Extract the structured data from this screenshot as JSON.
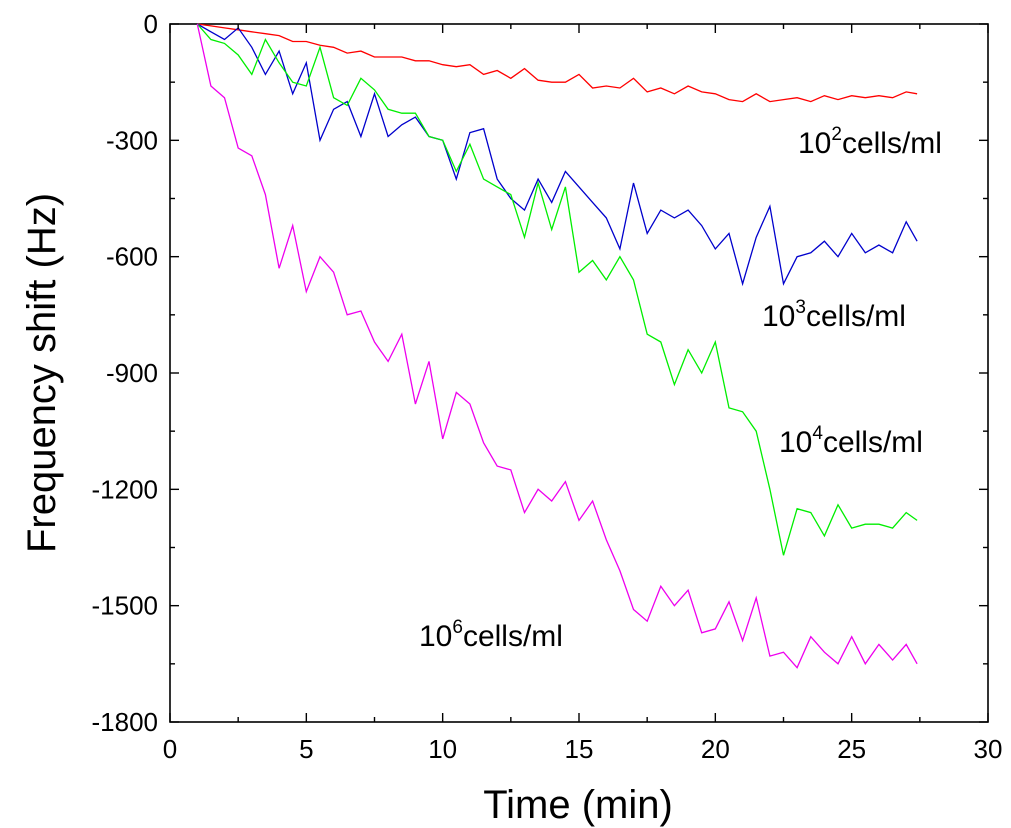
{
  "chart_data": {
    "type": "line",
    "title": "",
    "xlabel": "Time (min)",
    "ylabel": "Frequency shift (Hz)",
    "xlim": [
      0,
      30
    ],
    "ylim": [
      -1800,
      0
    ],
    "xticks": [
      0,
      5,
      10,
      15,
      20,
      25,
      30
    ],
    "yticks": [
      0,
      -300,
      -600,
      -900,
      -1200,
      -1500,
      -1800
    ],
    "x_tick_labels": [
      "0",
      "5",
      "10",
      "15",
      "20",
      "25",
      "30"
    ],
    "y_tick_labels": [
      "0",
      "-300",
      "-600",
      "-900",
      "-1200",
      "-1500",
      "-1800"
    ],
    "grid": false,
    "legend": "none (inline labels)",
    "series": [
      {
        "name": "10^2cells/ml",
        "label_base": "10",
        "label_exp": "2",
        "label_rest": "cells/ml",
        "color": "#ff0000",
        "points": [
          [
            1.0,
            0
          ],
          [
            1.5,
            -5
          ],
          [
            2.0,
            -10
          ],
          [
            2.5,
            -15
          ],
          [
            3.0,
            -20
          ],
          [
            3.5,
            -25
          ],
          [
            4.0,
            -30
          ],
          [
            4.5,
            -45
          ],
          [
            5.0,
            -45
          ],
          [
            5.5,
            -55
          ],
          [
            6.0,
            -60
          ],
          [
            6.5,
            -75
          ],
          [
            7.0,
            -70
          ],
          [
            7.5,
            -85
          ],
          [
            8.0,
            -85
          ],
          [
            8.5,
            -85
          ],
          [
            9.0,
            -95
          ],
          [
            9.5,
            -95
          ],
          [
            10.0,
            -105
          ],
          [
            10.5,
            -110
          ],
          [
            11.0,
            -105
          ],
          [
            11.5,
            -130
          ],
          [
            12.0,
            -120
          ],
          [
            12.5,
            -140
          ],
          [
            13.0,
            -115
          ],
          [
            13.5,
            -145
          ],
          [
            14.0,
            -150
          ],
          [
            14.5,
            -150
          ],
          [
            15.0,
            -130
          ],
          [
            15.5,
            -165
          ],
          [
            16.0,
            -160
          ],
          [
            16.5,
            -165
          ],
          [
            17.0,
            -140
          ],
          [
            17.5,
            -175
          ],
          [
            18.0,
            -165
          ],
          [
            18.5,
            -180
          ],
          [
            19.0,
            -160
          ],
          [
            19.5,
            -175
          ],
          [
            20.0,
            -180
          ],
          [
            20.5,
            -195
          ],
          [
            21.0,
            -200
          ],
          [
            21.5,
            -180
          ],
          [
            22.0,
            -200
          ],
          [
            22.5,
            -195
          ],
          [
            23.0,
            -190
          ],
          [
            23.5,
            -200
          ],
          [
            24.0,
            -185
          ],
          [
            24.5,
            -195
          ],
          [
            25.0,
            -185
          ],
          [
            25.5,
            -190
          ],
          [
            26.0,
            -185
          ],
          [
            26.5,
            -190
          ],
          [
            27.0,
            -175
          ],
          [
            27.4,
            -180
          ]
        ]
      },
      {
        "name": "10^3cells/ml",
        "label_base": "10",
        "label_exp": "3",
        "label_rest": "cells/ml",
        "color": "#0000cc",
        "points": [
          [
            1.0,
            0
          ],
          [
            1.5,
            -20
          ],
          [
            2.0,
            -40
          ],
          [
            2.5,
            -10
          ],
          [
            3.0,
            -60
          ],
          [
            3.5,
            -130
          ],
          [
            4.0,
            -70
          ],
          [
            4.5,
            -180
          ],
          [
            5.0,
            -100
          ],
          [
            5.5,
            -300
          ],
          [
            6.0,
            -220
          ],
          [
            6.5,
            -200
          ],
          [
            7.0,
            -290
          ],
          [
            7.5,
            -180
          ],
          [
            8.0,
            -290
          ],
          [
            8.5,
            -260
          ],
          [
            9.0,
            -240
          ],
          [
            9.5,
            -290
          ],
          [
            10.0,
            -300
          ],
          [
            10.5,
            -400
          ],
          [
            11.0,
            -280
          ],
          [
            11.5,
            -270
          ],
          [
            12.0,
            -400
          ],
          [
            12.5,
            -450
          ],
          [
            13.0,
            -480
          ],
          [
            13.5,
            -400
          ],
          [
            14.0,
            -460
          ],
          [
            14.5,
            -380
          ],
          [
            15.0,
            -420
          ],
          [
            15.5,
            -460
          ],
          [
            16.0,
            -500
          ],
          [
            16.5,
            -580
          ],
          [
            17.0,
            -410
          ],
          [
            17.5,
            -540
          ],
          [
            18.0,
            -480
          ],
          [
            18.5,
            -500
          ],
          [
            19.0,
            -480
          ],
          [
            19.5,
            -520
          ],
          [
            20.0,
            -580
          ],
          [
            20.5,
            -540
          ],
          [
            21.0,
            -670
          ],
          [
            21.5,
            -550
          ],
          [
            22.0,
            -470
          ],
          [
            22.5,
            -670
          ],
          [
            23.0,
            -600
          ],
          [
            23.5,
            -590
          ],
          [
            24.0,
            -560
          ],
          [
            24.5,
            -600
          ],
          [
            25.0,
            -540
          ],
          [
            25.5,
            -590
          ],
          [
            26.0,
            -570
          ],
          [
            26.5,
            -590
          ],
          [
            27.0,
            -510
          ],
          [
            27.4,
            -560
          ]
        ]
      },
      {
        "name": "10^4cells/ml",
        "label_base": "10",
        "label_exp": "4",
        "label_rest": "cells/ml",
        "color": "#00ee00",
        "points": [
          [
            1.0,
            0
          ],
          [
            1.5,
            -40
          ],
          [
            2.0,
            -50
          ],
          [
            2.5,
            -80
          ],
          [
            3.0,
            -130
          ],
          [
            3.5,
            -40
          ],
          [
            4.0,
            -100
          ],
          [
            4.5,
            -150
          ],
          [
            5.0,
            -160
          ],
          [
            5.5,
            -60
          ],
          [
            6.0,
            -190
          ],
          [
            6.5,
            -210
          ],
          [
            7.0,
            -140
          ],
          [
            7.5,
            -170
          ],
          [
            8.0,
            -220
          ],
          [
            8.5,
            -230
          ],
          [
            9.0,
            -230
          ],
          [
            9.5,
            -290
          ],
          [
            10.0,
            -300
          ],
          [
            10.5,
            -380
          ],
          [
            11.0,
            -310
          ],
          [
            11.5,
            -400
          ],
          [
            12.0,
            -420
          ],
          [
            12.5,
            -440
          ],
          [
            13.0,
            -550
          ],
          [
            13.5,
            -410
          ],
          [
            14.0,
            -530
          ],
          [
            14.5,
            -420
          ],
          [
            15.0,
            -640
          ],
          [
            15.5,
            -610
          ],
          [
            16.0,
            -660
          ],
          [
            16.5,
            -600
          ],
          [
            17.0,
            -660
          ],
          [
            17.5,
            -800
          ],
          [
            18.0,
            -820
          ],
          [
            18.5,
            -930
          ],
          [
            19.0,
            -840
          ],
          [
            19.5,
            -900
          ],
          [
            20.0,
            -820
          ],
          [
            20.5,
            -990
          ],
          [
            21.0,
            -1000
          ],
          [
            21.5,
            -1050
          ],
          [
            22.0,
            -1200
          ],
          [
            22.5,
            -1370
          ],
          [
            23.0,
            -1250
          ],
          [
            23.5,
            -1260
          ],
          [
            24.0,
            -1320
          ],
          [
            24.5,
            -1240
          ],
          [
            25.0,
            -1300
          ],
          [
            25.5,
            -1290
          ],
          [
            26.0,
            -1290
          ],
          [
            26.5,
            -1300
          ],
          [
            27.0,
            -1260
          ],
          [
            27.4,
            -1280
          ]
        ]
      },
      {
        "name": "10^6cells/ml",
        "label_base": "10",
        "label_exp": "6",
        "label_rest": "cells/ml",
        "color": "#ee00ee",
        "points": [
          [
            1.0,
            0
          ],
          [
            1.5,
            -160
          ],
          [
            2.0,
            -190
          ],
          [
            2.5,
            -320
          ],
          [
            3.0,
            -340
          ],
          [
            3.5,
            -440
          ],
          [
            4.0,
            -630
          ],
          [
            4.5,
            -520
          ],
          [
            5.0,
            -690
          ],
          [
            5.5,
            -600
          ],
          [
            6.0,
            -640
          ],
          [
            6.5,
            -750
          ],
          [
            7.0,
            -740
          ],
          [
            7.5,
            -820
          ],
          [
            8.0,
            -870
          ],
          [
            8.5,
            -800
          ],
          [
            9.0,
            -980
          ],
          [
            9.5,
            -870
          ],
          [
            10.0,
            -1070
          ],
          [
            10.5,
            -950
          ],
          [
            11.0,
            -980
          ],
          [
            11.5,
            -1080
          ],
          [
            12.0,
            -1140
          ],
          [
            12.5,
            -1150
          ],
          [
            13.0,
            -1260
          ],
          [
            13.5,
            -1200
          ],
          [
            14.0,
            -1230
          ],
          [
            14.5,
            -1180
          ],
          [
            15.0,
            -1280
          ],
          [
            15.5,
            -1230
          ],
          [
            16.0,
            -1330
          ],
          [
            16.5,
            -1410
          ],
          [
            17.0,
            -1510
          ],
          [
            17.5,
            -1540
          ],
          [
            18.0,
            -1450
          ],
          [
            18.5,
            -1500
          ],
          [
            19.0,
            -1460
          ],
          [
            19.5,
            -1570
          ],
          [
            20.0,
            -1560
          ],
          [
            20.5,
            -1490
          ],
          [
            21.0,
            -1590
          ],
          [
            21.5,
            -1480
          ],
          [
            22.0,
            -1630
          ],
          [
            22.5,
            -1620
          ],
          [
            23.0,
            -1660
          ],
          [
            23.5,
            -1580
          ],
          [
            24.0,
            -1620
          ],
          [
            24.5,
            -1650
          ],
          [
            25.0,
            -1580
          ],
          [
            25.5,
            -1650
          ],
          [
            26.0,
            -1600
          ],
          [
            26.5,
            -1640
          ],
          [
            27.0,
            -1600
          ],
          [
            27.4,
            -1650
          ]
        ]
      }
    ]
  }
}
